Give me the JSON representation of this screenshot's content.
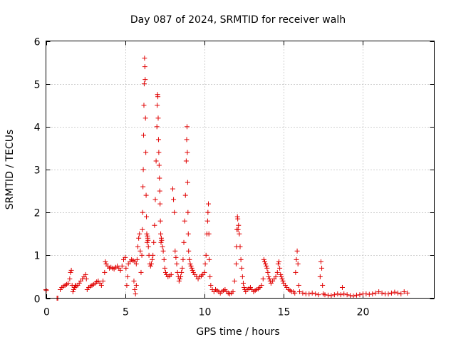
{
  "chart_data": {
    "type": "scatter",
    "title": "Day 087 of 2024, SRMTID for receiver walh",
    "xlabel": "GPS time / hours",
    "ylabel": "SRMTID / TECUs",
    "xlim": [
      0,
      24.5
    ],
    "ylim": [
      0,
      6
    ],
    "xticks": [
      0,
      5,
      10,
      15,
      20
    ],
    "yticks": [
      0,
      1,
      2,
      3,
      4,
      5,
      6
    ],
    "grid": true,
    "marker": "plus",
    "color": "#e00000",
    "series": [
      {
        "name": "SRMTID",
        "x": [
          0.0,
          0.02,
          0.7,
          0.75,
          0.9,
          1.0,
          1.1,
          1.2,
          1.3,
          1.4,
          1.5,
          1.55,
          1.6,
          1.65,
          1.7,
          1.75,
          1.8,
          1.85,
          1.9,
          2.0,
          2.1,
          2.2,
          2.3,
          2.4,
          2.5,
          2.55,
          2.6,
          2.7,
          2.8,
          2.9,
          3.0,
          3.1,
          3.2,
          3.3,
          3.4,
          3.5,
          3.6,
          3.7,
          3.75,
          3.8,
          3.9,
          4.0,
          4.1,
          4.2,
          4.3,
          4.4,
          4.5,
          4.6,
          4.7,
          4.8,
          4.9,
          5.0,
          5.05,
          5.1,
          5.15,
          5.2,
          5.3,
          5.4,
          5.5,
          5.6,
          5.7,
          5.55,
          5.6,
          5.65,
          5.7,
          5.75,
          5.8,
          5.85,
          5.9,
          5.95,
          6.0,
          6.05,
          6.08,
          6.1,
          6.12,
          6.14,
          6.16,
          6.18,
          6.2,
          6.22,
          6.24,
          6.26,
          6.28,
          6.3,
          6.32,
          6.34,
          6.36,
          6.38,
          6.4,
          6.42,
          6.44,
          6.46,
          6.5,
          6.55,
          6.6,
          6.65,
          6.7,
          6.75,
          6.8,
          6.85,
          6.9,
          6.95,
          7.0,
          7.02,
          7.04,
          7.06,
          7.08,
          7.1,
          7.12,
          7.14,
          7.16,
          7.18,
          7.2,
          7.22,
          7.24,
          7.26,
          7.28,
          7.3,
          7.35,
          7.4,
          7.45,
          7.5,
          7.55,
          7.6,
          7.7,
          7.8,
          7.9,
          8.0,
          8.05,
          8.1,
          8.15,
          8.2,
          8.25,
          8.3,
          8.35,
          8.4,
          8.45,
          8.5,
          8.55,
          8.6,
          8.65,
          8.7,
          8.75,
          8.8,
          8.85,
          8.88,
          8.9,
          8.92,
          8.94,
          8.96,
          8.98,
          9.0,
          9.05,
          9.1,
          9.15,
          9.2,
          9.25,
          9.3,
          9.4,
          9.5,
          9.6,
          9.7,
          9.8,
          9.9,
          10.0,
          10.05,
          10.1,
          10.15,
          10.2,
          10.22,
          10.25,
          10.28,
          10.3,
          10.35,
          10.4,
          10.5,
          10.6,
          10.7,
          10.8,
          10.9,
          11.0,
          11.1,
          11.2,
          11.3,
          11.4,
          11.5,
          11.6,
          11.7,
          11.8,
          11.9,
          12.0,
          12.02,
          12.05,
          12.08,
          12.1,
          12.12,
          12.15,
          12.2,
          12.25,
          12.3,
          12.35,
          12.4,
          12.45,
          12.5,
          12.55,
          12.6,
          12.7,
          12.8,
          12.9,
          13.0,
          13.1,
          13.2,
          13.3,
          13.4,
          13.5,
          13.6,
          13.7,
          13.75,
          13.8,
          13.85,
          13.9,
          13.95,
          14.0,
          14.05,
          14.1,
          14.15,
          14.2,
          14.3,
          14.4,
          14.5,
          14.6,
          14.65,
          14.7,
          14.75,
          14.8,
          14.85,
          14.9,
          14.95,
          15.0,
          15.1,
          15.2,
          15.3,
          15.4,
          15.5,
          15.6,
          15.7,
          15.75,
          15.8,
          15.85,
          15.9,
          15.95,
          16.0,
          16.2,
          16.4,
          16.6,
          16.8,
          17.0,
          17.2,
          17.3,
          17.35,
          17.4,
          17.45,
          17.5,
          17.6,
          17.8,
          18.0,
          18.2,
          18.4,
          18.6,
          18.7,
          18.8,
          19.0,
          19.2,
          19.4,
          19.6,
          19.8,
          20.0,
          20.2,
          20.4,
          20.6,
          20.8,
          21.0,
          21.2,
          21.4,
          21.6,
          21.8,
          22.0,
          22.2,
          22.4,
          22.6,
          22.8
        ],
        "y": [
          0.2,
          0.18,
          0.0,
          0.0,
          0.2,
          0.25,
          0.28,
          0.3,
          0.32,
          0.35,
          0.45,
          0.6,
          0.65,
          0.3,
          0.15,
          0.2,
          0.25,
          0.3,
          0.28,
          0.3,
          0.35,
          0.4,
          0.45,
          0.5,
          0.55,
          0.45,
          0.2,
          0.25,
          0.28,
          0.3,
          0.32,
          0.35,
          0.38,
          0.4,
          0.35,
          0.3,
          0.4,
          0.6,
          0.85,
          0.8,
          0.75,
          0.7,
          0.72,
          0.7,
          0.68,
          0.72,
          0.75,
          0.7,
          0.65,
          0.75,
          0.9,
          0.95,
          0.7,
          0.3,
          0.5,
          0.8,
          0.85,
          0.9,
          0.88,
          0.85,
          0.8,
          0.4,
          0.2,
          0.1,
          0.3,
          0.9,
          1.2,
          1.4,
          1.5,
          1.1,
          0.6,
          1.0,
          1.6,
          2.0,
          2.6,
          3.0,
          3.8,
          4.5,
          5.0,
          5.6,
          5.4,
          5.1,
          4.2,
          3.4,
          2.4,
          1.9,
          1.5,
          1.3,
          1.45,
          1.4,
          1.35,
          1.2,
          1.0,
          0.8,
          0.75,
          0.8,
          0.9,
          1.0,
          1.3,
          1.7,
          2.3,
          3.2,
          4.0,
          4.5,
          4.75,
          4.7,
          4.2,
          3.7,
          3.4,
          3.1,
          2.8,
          2.5,
          2.2,
          1.8,
          1.5,
          1.3,
          1.4,
          1.35,
          1.2,
          1.1,
          0.9,
          0.7,
          0.6,
          0.55,
          0.5,
          0.52,
          0.55,
          2.55,
          2.3,
          2.0,
          1.1,
          0.95,
          0.8,
          0.6,
          0.5,
          0.4,
          0.45,
          0.5,
          0.6,
          0.7,
          0.9,
          1.3,
          1.8,
          2.4,
          3.2,
          3.7,
          4.0,
          3.4,
          2.7,
          2.0,
          1.5,
          1.1,
          0.9,
          0.8,
          0.75,
          0.7,
          0.65,
          0.6,
          0.55,
          0.5,
          0.45,
          0.5,
          0.52,
          0.55,
          0.6,
          0.8,
          1.0,
          1.5,
          1.8,
          2.0,
          2.2,
          1.5,
          0.9,
          0.5,
          0.3,
          0.2,
          0.15,
          0.2,
          0.18,
          0.15,
          0.12,
          0.15,
          0.18,
          0.2,
          0.15,
          0.12,
          0.1,
          0.12,
          0.15,
          0.4,
          0.8,
          1.2,
          1.6,
          1.9,
          1.85,
          1.6,
          1.7,
          1.5,
          1.2,
          0.9,
          0.7,
          0.5,
          0.35,
          0.25,
          0.2,
          0.15,
          0.2,
          0.22,
          0.25,
          0.2,
          0.15,
          0.18,
          0.2,
          0.22,
          0.25,
          0.3,
          0.45,
          0.9,
          0.85,
          0.8,
          0.75,
          0.7,
          0.6,
          0.5,
          0.45,
          0.4,
          0.35,
          0.4,
          0.45,
          0.5,
          0.6,
          0.8,
          0.85,
          0.7,
          0.55,
          0.5,
          0.45,
          0.4,
          0.35,
          0.3,
          0.25,
          0.2,
          0.18,
          0.15,
          0.15,
          0.12,
          0.6,
          0.9,
          1.1,
          0.8,
          0.3,
          0.15,
          0.12,
          0.1,
          0.1,
          0.12,
          0.1,
          0.08,
          0.5,
          0.85,
          0.7,
          0.3,
          0.1,
          0.08,
          0.07,
          0.06,
          0.08,
          0.1,
          0.08,
          0.25,
          0.1,
          0.08,
          0.06,
          0.05,
          0.07,
          0.08,
          0.1,
          0.1,
          0.09,
          0.1,
          0.12,
          0.15,
          0.12,
          0.1,
          0.1,
          0.12,
          0.14,
          0.12,
          0.1,
          0.15,
          0.12
        ]
      }
    ]
  }
}
